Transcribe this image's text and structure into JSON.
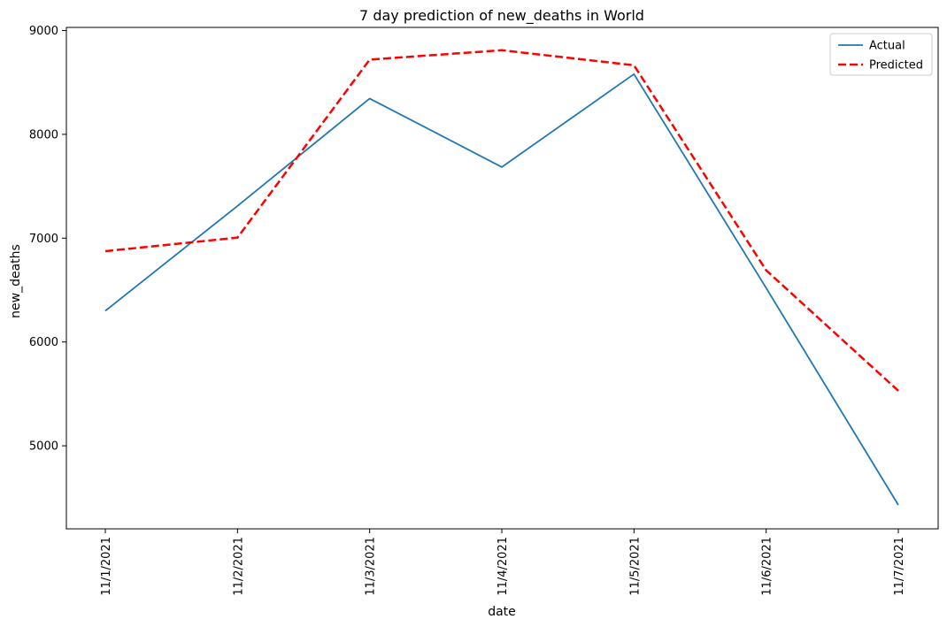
{
  "chart_data": {
    "type": "line",
    "title": "7 day prediction of new_deaths in World",
    "xlabel": "date",
    "ylabel": "new_deaths",
    "categories": [
      "11/1/2021",
      "11/2/2021",
      "11/3/2021",
      "11/4/2021",
      "11/5/2021",
      "11/6/2021",
      "11/7/2021"
    ],
    "yticks": [
      5000,
      6000,
      7000,
      8000,
      9000
    ],
    "ylim": [
      4200,
      9030
    ],
    "grid": false,
    "legend_position": "top-right",
    "series": [
      {
        "name": "Actual",
        "values": [
          6300,
          7310,
          8345,
          7685,
          8580,
          6520,
          4430
        ],
        "color": "#1f77b4",
        "style": "solid"
      },
      {
        "name": "Predicted",
        "values": [
          6875,
          7005,
          8720,
          8810,
          8665,
          6690,
          5530
        ],
        "color": "#ff0000",
        "style": "dashed"
      }
    ]
  }
}
